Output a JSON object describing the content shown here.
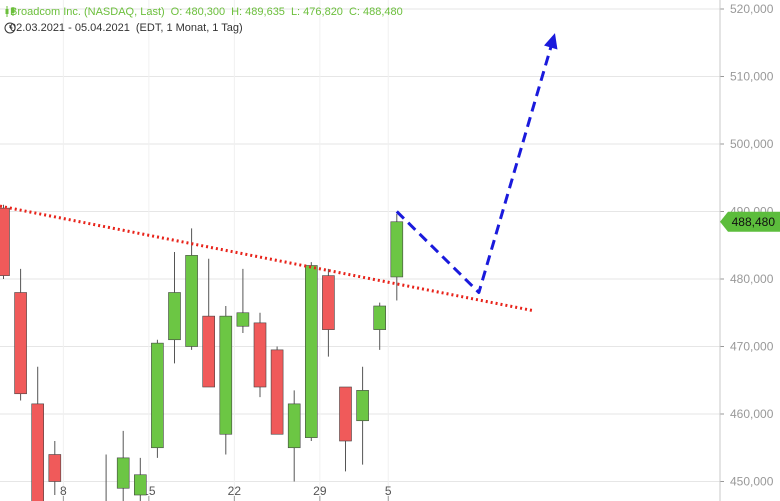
{
  "header": {
    "name": "Broadcom Inc. (NASDAQ, Last)",
    "open": "O: 480,300",
    "high": "H: 489,635",
    "low": "L: 476,820",
    "close": "C: 488,480",
    "range": "02.03.2021 - 05.04.2021",
    "period": "(EDT, 1 Monat, 1 Tag)"
  },
  "colors": {
    "up": "#6cc644",
    "down": "#f05a5a",
    "trend": "#e8231a",
    "projection": "#1a1adc",
    "badge": "#5cbd3c",
    "header": "#6bbf3b"
  },
  "chart_data": {
    "type": "candlestick",
    "ylim": [
      447,
      522
    ],
    "y_ticks": [
      450000,
      460000,
      470000,
      480000,
      490000,
      500000,
      510000,
      520000
    ],
    "y_tick_labels": [
      "450,000",
      "460,000",
      "470,000",
      "480,000",
      "490,000",
      "500,000",
      "510,000",
      "520,000"
    ],
    "x_tick_labels": [
      "8",
      "15",
      "22",
      "29",
      "5"
    ],
    "x_tick_slots": [
      3.5,
      8.5,
      13.5,
      18.5,
      22.5
    ],
    "last_price_label": "488,480",
    "last_price": 488.48,
    "candles": [
      {
        "slot": 0,
        "o": 490.5,
        "h": 491.0,
        "l": 480.0,
        "c": 480.5
      },
      {
        "slot": 1,
        "o": 478.0,
        "h": 481.5,
        "l": 462.0,
        "c": 463.0
      },
      {
        "slot": 2,
        "o": 461.5,
        "h": 467.0,
        "l": 444.0,
        "c": 447.0
      },
      {
        "slot": 3,
        "o": 454.0,
        "h": 456.0,
        "l": 448.0,
        "c": 450.0
      },
      {
        "slot": 6,
        "o": 447.0,
        "h": 454.0,
        "l": 446.0,
        "c": 447.0
      },
      {
        "slot": 7,
        "o": 449.0,
        "h": 457.5,
        "l": 447.0,
        "c": 453.5
      },
      {
        "slot": 8,
        "o": 448.0,
        "h": 453.5,
        "l": 446.0,
        "c": 451.0
      },
      {
        "slot": 9,
        "o": 455.0,
        "h": 471.0,
        "l": 453.5,
        "c": 470.5
      },
      {
        "slot": 10,
        "o": 471.0,
        "h": 484.0,
        "l": 467.5,
        "c": 478.0
      },
      {
        "slot": 11,
        "o": 470.0,
        "h": 487.5,
        "l": 469.5,
        "c": 483.5
      },
      {
        "slot": 12,
        "o": 474.5,
        "h": 483.0,
        "l": 464.0,
        "c": 464.0
      },
      {
        "slot": 13,
        "o": 457.0,
        "h": 476.0,
        "l": 454.0,
        "c": 474.5
      },
      {
        "slot": 14,
        "o": 473.0,
        "h": 481.5,
        "l": 472.0,
        "c": 475.0
      },
      {
        "slot": 15,
        "o": 473.5,
        "h": 475.0,
        "l": 462.5,
        "c": 464.0
      },
      {
        "slot": 16,
        "o": 469.5,
        "h": 470.0,
        "l": 457.0,
        "c": 457.0
      },
      {
        "slot": 17,
        "o": 455.0,
        "h": 463.5,
        "l": 450.0,
        "c": 461.5
      },
      {
        "slot": 18,
        "o": 456.5,
        "h": 482.5,
        "l": 456.0,
        "c": 482.0
      },
      {
        "slot": 19,
        "o": 480.5,
        "h": 481.5,
        "l": 468.5,
        "c": 472.5
      },
      {
        "slot": 20,
        "o": 464.0,
        "h": 464.0,
        "l": 451.5,
        "c": 456.0
      },
      {
        "slot": 21,
        "o": 459.0,
        "h": 467.0,
        "l": 452.5,
        "c": 463.5
      },
      {
        "slot": 22,
        "o": 472.5,
        "h": 476.5,
        "l": 469.5,
        "c": 476.0
      },
      {
        "slot": 23,
        "o": 480.3,
        "h": 489.635,
        "l": 476.82,
        "c": 488.48
      }
    ],
    "trendline": [
      {
        "slot": 0,
        "y": 490.8
      },
      {
        "slot": 31,
        "y": 475.3
      }
    ],
    "projection": [
      {
        "slot": 23,
        "y": 490.0
      },
      {
        "slot": 27.8,
        "y": 478.0
      },
      {
        "slot": 32.2,
        "y": 516.0
      }
    ],
    "grid": true
  }
}
